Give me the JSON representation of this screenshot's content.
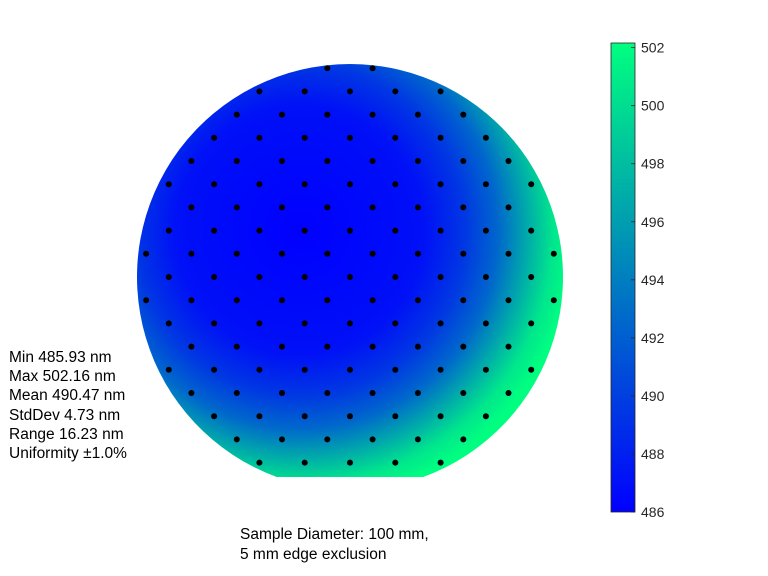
{
  "chart_data": {
    "type": "heatmap",
    "title": "",
    "unit": "nm",
    "colorbar": {
      "range": [
        486,
        502.16
      ],
      "ticks": [
        486,
        488,
        490,
        492,
        494,
        496,
        498,
        500,
        502
      ],
      "colormap": [
        "#0000FF",
        "#00FF80"
      ]
    },
    "field": {
      "min": 485.93,
      "max": 502.16,
      "shape": "wafer-with-flat",
      "gradient": "radial, minimum near center, maximum at right and bottom-right edge"
    },
    "measurement_points": {
      "count": 121,
      "pattern": "hexagonal-grid-on-wafer"
    }
  },
  "stats": {
    "min": "Min 485.93 nm",
    "max": "Max 502.16 nm",
    "mean": "Mean 490.47 nm",
    "stddev": "StdDev 4.73 nm",
    "range": "Range 16.23 nm",
    "uniformity": "Uniformity ±1.0%"
  },
  "caption": {
    "line1": "Sample Diameter: 100 mm,",
    "line2": "5 mm edge exclusion"
  },
  "colors": {
    "low": "#0000FF",
    "high": "#00FF80",
    "points": "#000000"
  }
}
